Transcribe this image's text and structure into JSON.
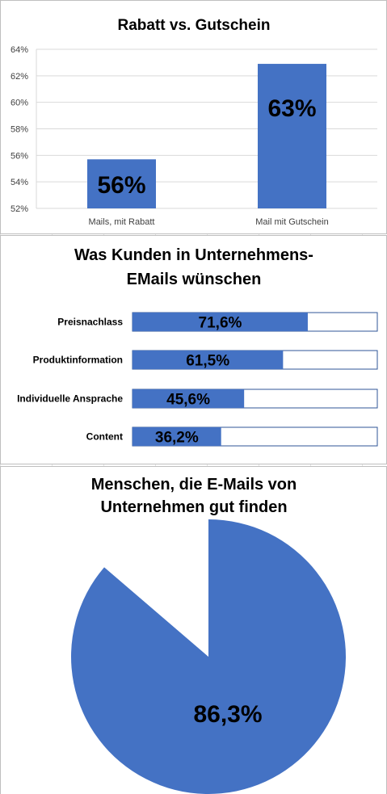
{
  "chart_data": [
    {
      "type": "bar",
      "title": "Rabatt vs. Gutschein",
      "categories": [
        "Mails, mit Rabatt",
        "Mail mit Gutschein"
      ],
      "values": [
        55.7,
        62.9
      ],
      "data_labels": [
        "56%",
        "63%"
      ],
      "ylim": [
        52,
        64
      ],
      "yticks": [
        "52%",
        "54%",
        "56%",
        "58%",
        "60%",
        "62%",
        "64%"
      ],
      "grid": true,
      "color": "#4472C4"
    },
    {
      "type": "bar",
      "orientation": "horizontal",
      "title_lines": [
        "Was Kunden in Unternehmens-",
        "EMails wünschen"
      ],
      "categories": [
        "Preisnachlass",
        "Produktinformation",
        "Individuelle Ansprache",
        "Content"
      ],
      "values": [
        71.6,
        61.5,
        45.6,
        36.2
      ],
      "data_labels": [
        "71,6%",
        "61,5%",
        "45,6%",
        "36,2%"
      ],
      "xlim": [
        0,
        100
      ],
      "color": "#4472C4"
    },
    {
      "type": "pie",
      "title_lines": [
        "Menschen, die E-Mails von",
        "Unternehmen gut finden"
      ],
      "slices": [
        {
          "value": 86.3,
          "label": "86,3%",
          "color": "#4472C4"
        },
        {
          "value": 13.7,
          "label": "",
          "color": "#ffffff"
        }
      ]
    }
  ]
}
